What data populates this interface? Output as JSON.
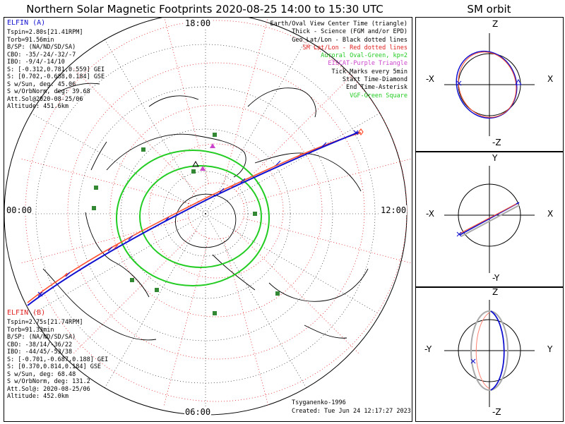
{
  "title": "Northern Solar Magnetic Footprints 2020-08-25 14:00 to 15:30 UTC",
  "orbit_title": "SM orbit",
  "ela": {
    "name": "ELFIN (A)",
    "lines": [
      "Tspin=2.80s[21.41RPM]",
      "Torb=91.56min",
      "B/SP: (NA/ND/SD/SA)",
      "CBO: -35/-24/-32/-7",
      "IBO: -9/4/-14/10",
      "S: [-0.312,0.781,0.559] GEI",
      "S: [0.702,-0.688,0.184] GSE",
      "S w/Sun, deg: 45.06",
      "S w/OrbNorm, deg: 39.68",
      "Att.Sol@2020-08-25/06",
      "Altitude: 451.6km"
    ]
  },
  "elb": {
    "name": "ELFIN (B)",
    "lines": [
      "Tspin=2.75s[21.74RPM]",
      "Torb=91.33min",
      "B/SP: (NA/ND/SD/SA)",
      "CBO: -38/14/-36/22",
      "IBO: -44/45/-53/38",
      "S: [-0.701,-0.687,0.188] GEI",
      "S: [0.370,0.814,0.184] GSE",
      "S w/Sun, deg: 68.48",
      "S w/OrbNorm, deg: 131.2",
      "Att.Sol@: 2020-08-25/06",
      "Altitude: 452.0km"
    ]
  },
  "legend": [
    {
      "text": "Earth/Oval View Center Time (triangle)",
      "color": "#000000"
    },
    {
      "text": "Thick - Science (FGM and/or EPD)",
      "color": "#000000"
    },
    {
      "text": "Geo Lat/Lon - Black dotted lines",
      "color": "#000000"
    },
    {
      "text": "SM Lat/Lon - Red dotted lines",
      "color": "#e02020"
    },
    {
      "text": "Auroral Oval-Green, kp=2",
      "color": "#22cc22"
    },
    {
      "text": "EISCAT-Purple Triangle",
      "color": "#cc44cc"
    },
    {
      "text": "Tick Marks every 5min",
      "color": "#000000"
    },
    {
      "text": "Start Time-Diamond",
      "color": "#000000"
    },
    {
      "text": "End Time-Asterisk",
      "color": "#000000"
    },
    {
      "text": "VGF-Green Square",
      "color": "#22cc22"
    }
  ],
  "clock": {
    "top": "18:00",
    "left": "00:00",
    "right": "12:00",
    "bottom": "06:00"
  },
  "credit": {
    "author": "Tsyganenko-1996",
    "created": "Created: Tue Jun 24 12:17:27 2023"
  },
  "orbit_panels": [
    {
      "top": "Z",
      "bottom": "-Z",
      "left": "-X",
      "right": "X"
    },
    {
      "top": "Y",
      "bottom": "-Y",
      "left": "-X",
      "right": "X"
    },
    {
      "top": "Z",
      "bottom": "-Z",
      "left": "-Y",
      "right": "Y"
    }
  ],
  "chart_data": {
    "type": "polar-map",
    "projection": "north pole, solar-magnetic",
    "colors": {
      "ela": "#1010d0",
      "elb": "#ff5030",
      "oval": "#22cc22",
      "sm_grid": "#e02020",
      "geo_grid": "#000000",
      "vgf": "#338833",
      "eiscat": "#cc44cc"
    },
    "auroral_oval_kp": 2,
    "tick_interval_min": 5,
    "time_range": [
      "2020-08-25 14:00",
      "2020-08-25 15:30"
    ]
  }
}
